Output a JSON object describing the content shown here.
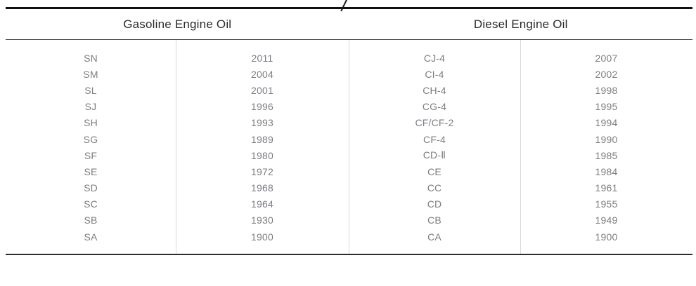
{
  "table": {
    "headers": [
      {
        "label": "Gasoline Engine Oil"
      },
      {
        "label": "Diesel Engine Oil"
      }
    ],
    "rows": [
      {
        "gasoline_grade": "SN",
        "gasoline_year": "2011",
        "diesel_grade": "CJ-4",
        "diesel_year": "2007"
      },
      {
        "gasoline_grade": "SM",
        "gasoline_year": "2004",
        "diesel_grade": "CI-4",
        "diesel_year": "2002"
      },
      {
        "gasoline_grade": "SL",
        "gasoline_year": "2001",
        "diesel_grade": "CH-4",
        "diesel_year": "1998"
      },
      {
        "gasoline_grade": "SJ",
        "gasoline_year": "1996",
        "diesel_grade": "CG-4",
        "diesel_year": "1995"
      },
      {
        "gasoline_grade": "SH",
        "gasoline_year": "1993",
        "diesel_grade": "CF/CF-2",
        "diesel_year": "1994"
      },
      {
        "gasoline_grade": "SG",
        "gasoline_year": "1989",
        "diesel_grade": "CF-4",
        "diesel_year": "1990"
      },
      {
        "gasoline_grade": "SF",
        "gasoline_year": "1980",
        "diesel_grade": "CD-Ⅱ",
        "diesel_year": "1985"
      },
      {
        "gasoline_grade": "SE",
        "gasoline_year": "1972",
        "diesel_grade": "CE",
        "diesel_year": "1984"
      },
      {
        "gasoline_grade": "SD",
        "gasoline_year": "1968",
        "diesel_grade": "CC",
        "diesel_year": "1961"
      },
      {
        "gasoline_grade": "SC",
        "gasoline_year": "1964",
        "diesel_grade": "CD",
        "diesel_year": "1955"
      },
      {
        "gasoline_grade": "SB",
        "gasoline_year": "1930",
        "diesel_grade": "CB",
        "diesel_year": "1949"
      },
      {
        "gasoline_grade": "SA",
        "gasoline_year": "1900",
        "diesel_grade": "CA",
        "diesel_year": "1900"
      }
    ]
  },
  "colors": {
    "header_text": "#2b2b2b",
    "body_text": "#7a7d82",
    "top_rule": "#101010",
    "header_rule": "#3b3b3b",
    "bottom_rule": "#2c2c2c",
    "column_divider": "#d9d9d9"
  }
}
